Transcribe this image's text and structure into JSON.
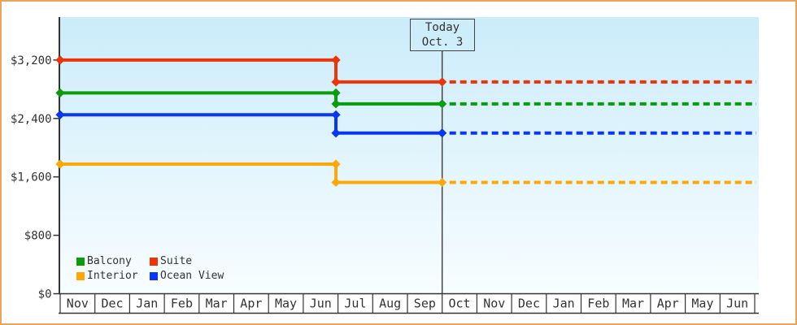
{
  "window": {
    "border_color": "#e8a55c",
    "background": "#ffffff",
    "text_color": "#333333",
    "axis_color": "#333333",
    "today_line_color": "#444444",
    "plot_bg_top": "#cbecfa",
    "plot_bg_bottom": "#f8fdff"
  },
  "chart_data": {
    "type": "line",
    "title": "",
    "grid": false,
    "legend_position": "inside-bottom-left",
    "x_tick_labels": [
      "Nov",
      "Dec",
      "Jan",
      "Feb",
      "Mar",
      "Apr",
      "May",
      "Jun",
      "Jul",
      "Aug",
      "Sep",
      "Oct",
      "Nov",
      "Dec",
      "Jan",
      "Feb",
      "Mar",
      "Apr",
      "May",
      "Jun"
    ],
    "month_count": 20,
    "y_tick_labels": [
      "$0",
      "$800",
      "$1,600",
      "$2,400",
      "$3,200"
    ],
    "y_tick_values": [
      0,
      800,
      1600,
      2400,
      3200
    ],
    "ylim": [
      0,
      3790
    ],
    "today": {
      "line1": "Today",
      "line2": "Oct. 3",
      "month_index": 11
    },
    "price_drop_month_index": 7.94,
    "projection_style": "dashed",
    "series": [
      {
        "name": "Suite",
        "color": "#ee3407",
        "initial_price": 3200,
        "price_after_drop": 2900,
        "projected_price": 2900
      },
      {
        "name": "Balcony",
        "color": "#0a9c0a",
        "initial_price": 2750,
        "price_after_drop": 2600,
        "projected_price": 2600
      },
      {
        "name": "Ocean View",
        "color": "#0836f2",
        "initial_price": 2450,
        "price_after_drop": 2200,
        "projected_price": 2200
      },
      {
        "name": "Interior",
        "color": "#ffa805",
        "initial_price": 1775,
        "price_after_drop": 1525,
        "projected_price": 1525
      }
    ]
  },
  "legend": {
    "items": [
      {
        "label": "Balcony",
        "color": "#0a9c0a"
      },
      {
        "label": "Suite",
        "color": "#ee3407"
      },
      {
        "label": "Interior",
        "color": "#ffa805"
      },
      {
        "label": "Ocean View",
        "color": "#0836f2"
      }
    ]
  }
}
